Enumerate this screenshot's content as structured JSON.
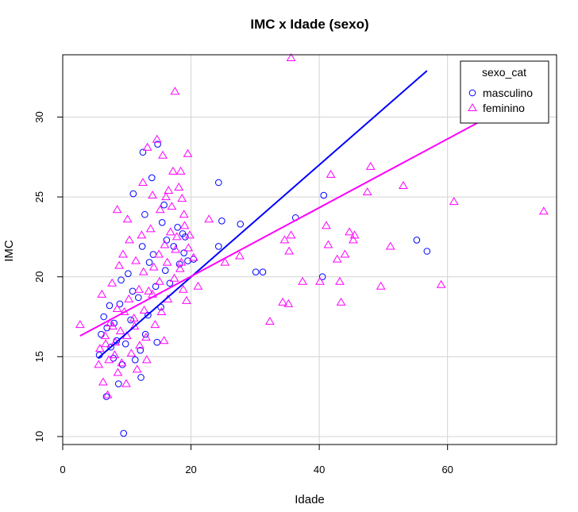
{
  "chart_data": {
    "type": "scatter",
    "title": "IMC x Idade (sexo)",
    "xlabel": "Idade",
    "ylabel": "IMC",
    "xlim": [
      0,
      77
    ],
    "ylim": [
      9.5,
      33.9
    ],
    "xticks": [
      0,
      20,
      40,
      60
    ],
    "yticks": [
      10,
      15,
      20,
      25,
      30
    ],
    "grid": true,
    "legend": {
      "title": "sexo_cat",
      "position": "top-right",
      "entries": [
        {
          "label": "masculino",
          "marker": "circle",
          "color": "#0000ff"
        },
        {
          "label": "feminino",
          "marker": "triangle",
          "color": "#ff00ff"
        }
      ]
    },
    "series": [
      {
        "name": "masculino",
        "marker": "circle",
        "color": "#0000ff",
        "points": [
          [
            9.5,
            10.2
          ],
          [
            6.8,
            12.5
          ],
          [
            8.7,
            13.3
          ],
          [
            12.2,
            13.7
          ],
          [
            14.7,
            15.9
          ],
          [
            24.3,
            25.9
          ],
          [
            24.8,
            23.5
          ],
          [
            24.3,
            21.9
          ],
          [
            27.7,
            23.3
          ],
          [
            30.1,
            20.3
          ],
          [
            31.2,
            20.3
          ],
          [
            36.3,
            23.7
          ],
          [
            40.7,
            25.1
          ],
          [
            40.5,
            20.0
          ],
          [
            55.2,
            22.3
          ],
          [
            56.8,
            21.6
          ],
          [
            12.5,
            27.8
          ],
          [
            14.8,
            28.3
          ],
          [
            11.0,
            25.2
          ],
          [
            12.8,
            23.9
          ],
          [
            13.9,
            26.2
          ],
          [
            15.8,
            24.5
          ],
          [
            19.5,
            21.0
          ],
          [
            20.4,
            21.1
          ],
          [
            17.9,
            23.1
          ],
          [
            16.2,
            22.3
          ],
          [
            18.7,
            22.7
          ],
          [
            14.1,
            21.4
          ],
          [
            10.2,
            20.2
          ],
          [
            9.1,
            19.8
          ],
          [
            7.3,
            18.2
          ],
          [
            8.0,
            17.1
          ],
          [
            6.0,
            16.4
          ],
          [
            7.5,
            15.6
          ],
          [
            5.7,
            15.1
          ],
          [
            9.3,
            14.5
          ],
          [
            11.3,
            14.8
          ],
          [
            12.9,
            16.4
          ],
          [
            15.3,
            18.1
          ],
          [
            16.7,
            19.6
          ],
          [
            18.2,
            20.8
          ],
          [
            19.1,
            22.5
          ],
          [
            13.5,
            20.9
          ],
          [
            11.8,
            18.7
          ],
          [
            10.6,
            17.3
          ],
          [
            8.4,
            16.0
          ],
          [
            6.4,
            17.5
          ],
          [
            14.5,
            19.4
          ],
          [
            17.3,
            21.9
          ],
          [
            12.1,
            15.4
          ],
          [
            9.8,
            15.8
          ],
          [
            7.9,
            14.9
          ],
          [
            13.3,
            17.6
          ],
          [
            16.0,
            20.4
          ],
          [
            18.9,
            21.5
          ],
          [
            15.5,
            23.4
          ],
          [
            12.4,
            21.9
          ],
          [
            10.9,
            19.1
          ],
          [
            8.9,
            18.3
          ],
          [
            6.9,
            16.8
          ]
        ]
      },
      {
        "name": "feminino",
        "marker": "triangle",
        "color": "#ff00ff",
        "points": [
          [
            2.7,
            17.0
          ],
          [
            5.6,
            14.5
          ],
          [
            6.3,
            13.4
          ],
          [
            7.0,
            12.6
          ],
          [
            8.6,
            14.0
          ],
          [
            9.9,
            13.3
          ],
          [
            11.6,
            14.2
          ],
          [
            13.1,
            14.8
          ],
          [
            15.8,
            16.0
          ],
          [
            17.5,
            31.6
          ],
          [
            35.6,
            33.7
          ],
          [
            17.2,
            26.6
          ],
          [
            18.4,
            26.6
          ],
          [
            19.5,
            27.7
          ],
          [
            15.6,
            27.6
          ],
          [
            13.2,
            28.1
          ],
          [
            14.7,
            28.6
          ],
          [
            12.5,
            25.9
          ],
          [
            14.0,
            25.1
          ],
          [
            16.5,
            25.4
          ],
          [
            18.6,
            24.9
          ],
          [
            8.5,
            24.2
          ],
          [
            10.1,
            23.6
          ],
          [
            19.8,
            22.6
          ],
          [
            18.9,
            23.9
          ],
          [
            22.8,
            23.6
          ],
          [
            20.4,
            21.2
          ],
          [
            21.1,
            19.4
          ],
          [
            25.3,
            20.9
          ],
          [
            27.6,
            21.3
          ],
          [
            32.3,
            17.2
          ],
          [
            34.3,
            18.4
          ],
          [
            35.2,
            18.3
          ],
          [
            34.6,
            22.3
          ],
          [
            35.3,
            21.6
          ],
          [
            35.6,
            22.6
          ],
          [
            37.4,
            19.7
          ],
          [
            40.1,
            19.7
          ],
          [
            41.1,
            23.2
          ],
          [
            41.4,
            22.0
          ],
          [
            41.8,
            26.4
          ],
          [
            42.8,
            21.1
          ],
          [
            43.2,
            19.7
          ],
          [
            43.4,
            18.4
          ],
          [
            44.0,
            21.4
          ],
          [
            44.7,
            22.8
          ],
          [
            45.3,
            22.3
          ],
          [
            45.5,
            22.6
          ],
          [
            47.5,
            25.3
          ],
          [
            48.0,
            26.9
          ],
          [
            49.6,
            19.4
          ],
          [
            51.1,
            21.9
          ],
          [
            53.1,
            25.7
          ],
          [
            59.0,
            19.5
          ],
          [
            61.0,
            24.7
          ],
          [
            75.0,
            24.1
          ],
          [
            5.8,
            15.5
          ],
          [
            6.6,
            16.3
          ],
          [
            7.4,
            17.1
          ],
          [
            8.2,
            15.9
          ],
          [
            9.0,
            16.6
          ],
          [
            9.6,
            17.8
          ],
          [
            10.3,
            18.6
          ],
          [
            11.1,
            17.4
          ],
          [
            11.9,
            19.2
          ],
          [
            12.6,
            20.3
          ],
          [
            13.4,
            19.1
          ],
          [
            14.2,
            20.6
          ],
          [
            15.0,
            21.4
          ],
          [
            15.9,
            22.0
          ],
          [
            16.8,
            22.8
          ],
          [
            17.6,
            21.7
          ],
          [
            18.3,
            20.5
          ],
          [
            18.8,
            19.2
          ],
          [
            19.3,
            18.5
          ],
          [
            6.1,
            18.9
          ],
          [
            7.7,
            19.6
          ],
          [
            8.8,
            20.7
          ],
          [
            9.4,
            21.4
          ],
          [
            10.4,
            22.3
          ],
          [
            11.4,
            21.0
          ],
          [
            12.3,
            22.6
          ],
          [
            13.7,
            23.0
          ],
          [
            15.2,
            24.2
          ],
          [
            16.1,
            25.0
          ],
          [
            17.0,
            24.4
          ],
          [
            18.1,
            25.6
          ],
          [
            19.0,
            23.2
          ],
          [
            7.2,
            14.8
          ],
          [
            8.1,
            15.1
          ],
          [
            9.2,
            14.6
          ],
          [
            10.7,
            15.2
          ],
          [
            12.0,
            15.7
          ],
          [
            13.0,
            16.2
          ],
          [
            14.4,
            17.0
          ],
          [
            15.4,
            17.8
          ],
          [
            16.4,
            18.6
          ],
          [
            17.4,
            19.9
          ],
          [
            18.5,
            20.9
          ],
          [
            19.6,
            21.8
          ],
          [
            6.7,
            15.8
          ],
          [
            7.8,
            16.9
          ],
          [
            8.5,
            18.0
          ],
          [
            10.0,
            16.3
          ],
          [
            11.2,
            16.9
          ],
          [
            12.7,
            17.9
          ],
          [
            14.0,
            18.9
          ],
          [
            15.1,
            19.7
          ],
          [
            16.3,
            20.9
          ],
          [
            17.8,
            22.5
          ]
        ]
      }
    ],
    "trend_lines": [
      {
        "name": "masculino",
        "color": "#0000ff",
        "x": [
          5.5,
          56.8
        ],
        "y": [
          14.9,
          32.9
        ]
      },
      {
        "name": "feminino",
        "color": "#ff00ff",
        "x": [
          2.7,
          71.0
        ],
        "y": [
          16.3,
          31.0
        ]
      }
    ]
  }
}
